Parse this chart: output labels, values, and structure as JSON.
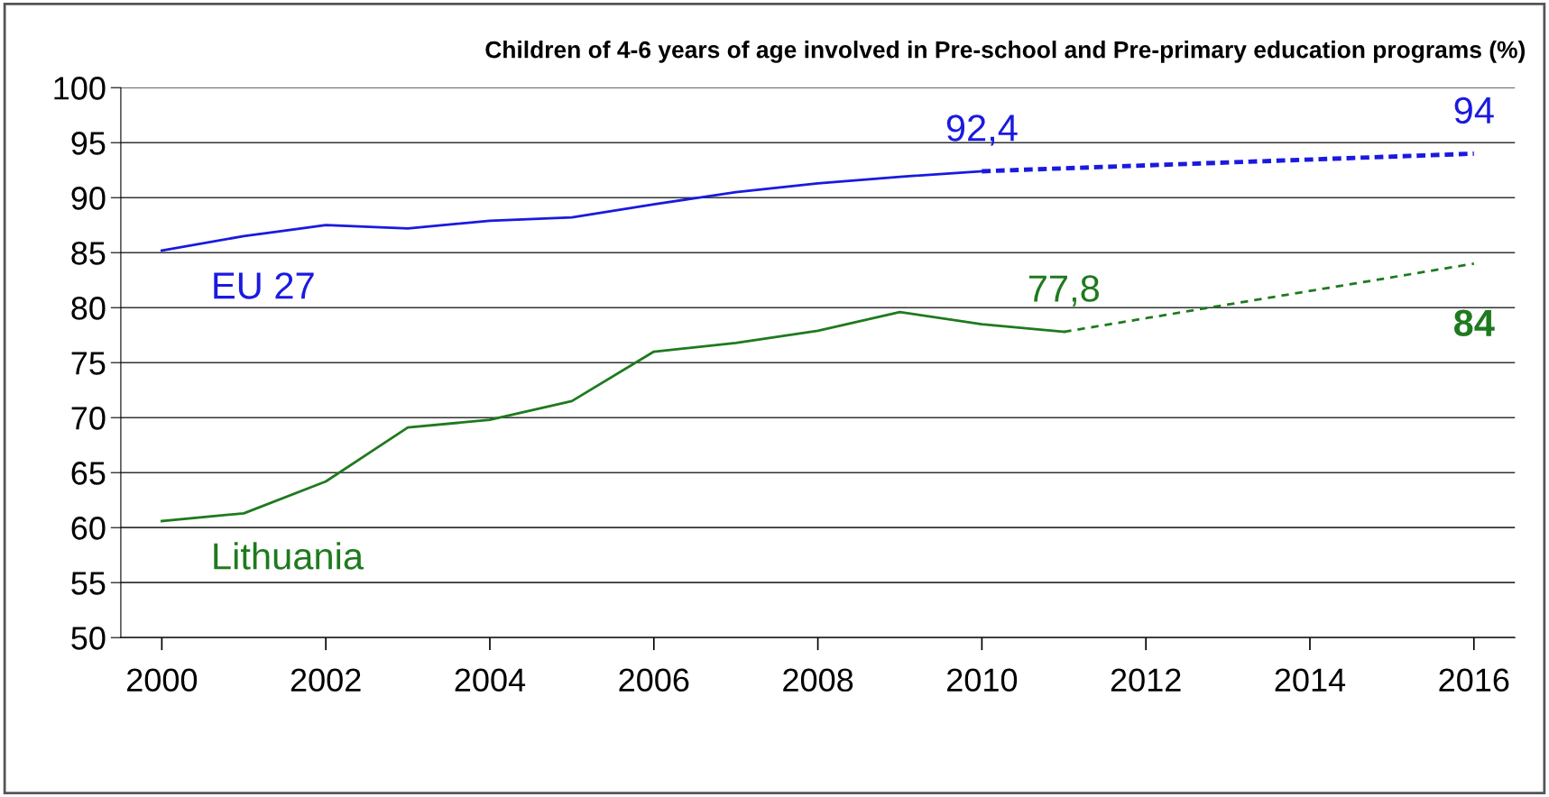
{
  "chart_data": {
    "type": "line",
    "title": "Children of 4-6 years of age involved in Pre-school and Pre-primary education programs (%)",
    "series": [
      {
        "name": "EU 27",
        "color": "#1a1adf",
        "x": [
          2000,
          2001,
          2002,
          2003,
          2004,
          2005,
          2006,
          2007,
          2008,
          2009,
          2010
        ],
        "values": [
          85.2,
          86.5,
          87.5,
          87.2,
          87.9,
          88.2,
          89.4,
          90.5,
          91.3,
          91.9,
          92.4
        ]
      },
      {
        "color": "#1a1adf",
        "line_style": "dashed",
        "x": [
          2010,
          2016
        ],
        "values": [
          92.4,
          94
        ]
      },
      {
        "name": "Lithuania",
        "color": "#1e7a1e",
        "x": [
          2000,
          2001,
          2002,
          2003,
          2004,
          2005,
          2006,
          2007,
          2008,
          2009,
          2010,
          2011
        ],
        "values": [
          60.6,
          61.3,
          64.2,
          69.1,
          69.8,
          71.5,
          76.0,
          76.8,
          77.9,
          79.6,
          78.5,
          77.8
        ]
      },
      {
        "color": "#1e7a1e",
        "line_style": "dotted",
        "x": [
          2011,
          2016
        ],
        "values": [
          77.8,
          84
        ]
      }
    ],
    "annotations": [
      {
        "text": "92,4",
        "x": 2010,
        "y": 92.4
      },
      {
        "text": "94",
        "x": 2016,
        "y": 94
      },
      {
        "text": "77,8",
        "x": 2011,
        "y": 77.8
      },
      {
        "text": "84",
        "x": 2016,
        "y": 84
      }
    ],
    "xlim": [
      1999.5,
      2016.5
    ],
    "xticks": [
      2000,
      2002,
      2004,
      2006,
      2008,
      2010,
      2012,
      2014,
      2016
    ],
    "ylim": [
      50,
      100
    ],
    "yticks": [
      50,
      55,
      60,
      65,
      70,
      75,
      80,
      85,
      90,
      95,
      100
    ],
    "grid": "y",
    "marker": "none",
    "line_style": "solid",
    "legend": false
  }
}
